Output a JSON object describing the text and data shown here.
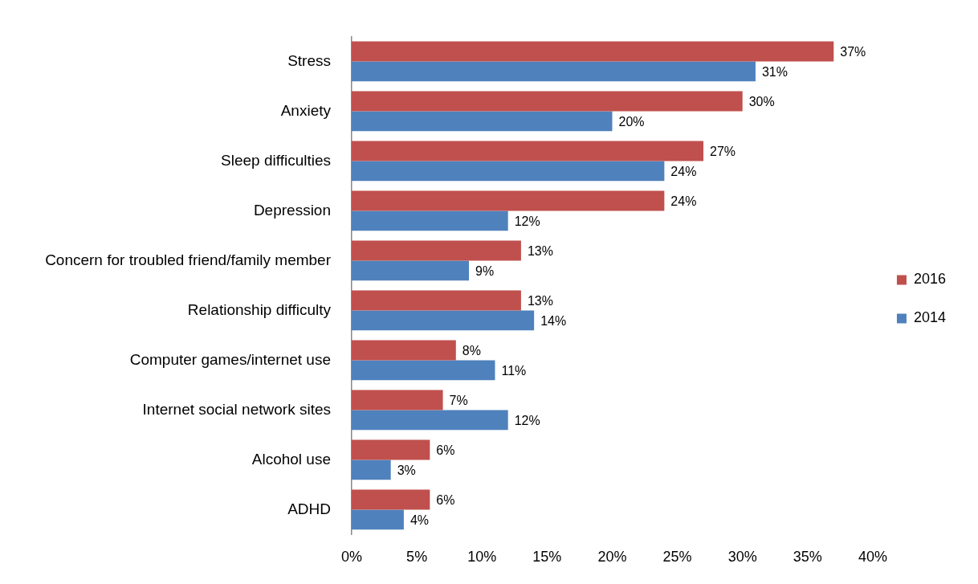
{
  "chart_data": {
    "type": "bar",
    "orientation": "horizontal",
    "categories": [
      "Stress",
      "Anxiety",
      "Sleep difficulties",
      "Depression",
      "Concern for troubled friend/family member",
      "Relationship difficulty",
      "Computer games/internet use",
      "Internet social network sites",
      "Alcohol use",
      "ADHD"
    ],
    "series": [
      {
        "name": "2016",
        "color": "#c0504d",
        "values": [
          37,
          30,
          27,
          24,
          13,
          13,
          8,
          7,
          6,
          6
        ],
        "value_labels": [
          "37%",
          "30%",
          "27%",
          "24%",
          "13%",
          "13%",
          "8%",
          "7%",
          "6%",
          "6%"
        ]
      },
      {
        "name": "2014",
        "color": "#4f81bd",
        "values": [
          31,
          20,
          24,
          12,
          9,
          14,
          11,
          12,
          3,
          4
        ],
        "value_labels": [
          "31%",
          "20%",
          "24%",
          "12%",
          "9%",
          "14%",
          "11%",
          "12%",
          "3%",
          "4%"
        ]
      }
    ],
    "xlim": [
      0,
      40
    ],
    "xticks": [
      {
        "value": 0,
        "label": "0%"
      },
      {
        "value": 5,
        "label": "5%"
      },
      {
        "value": 10,
        "label": "10%"
      },
      {
        "value": 15,
        "label": "15%"
      },
      {
        "value": 20,
        "label": "20%"
      },
      {
        "value": 25,
        "label": "25%"
      },
      {
        "value": 30,
        "label": "30%"
      },
      {
        "value": 35,
        "label": "35%"
      },
      {
        "value": 40,
        "label": "40%"
      }
    ],
    "grid": false,
    "legend": "right"
  }
}
